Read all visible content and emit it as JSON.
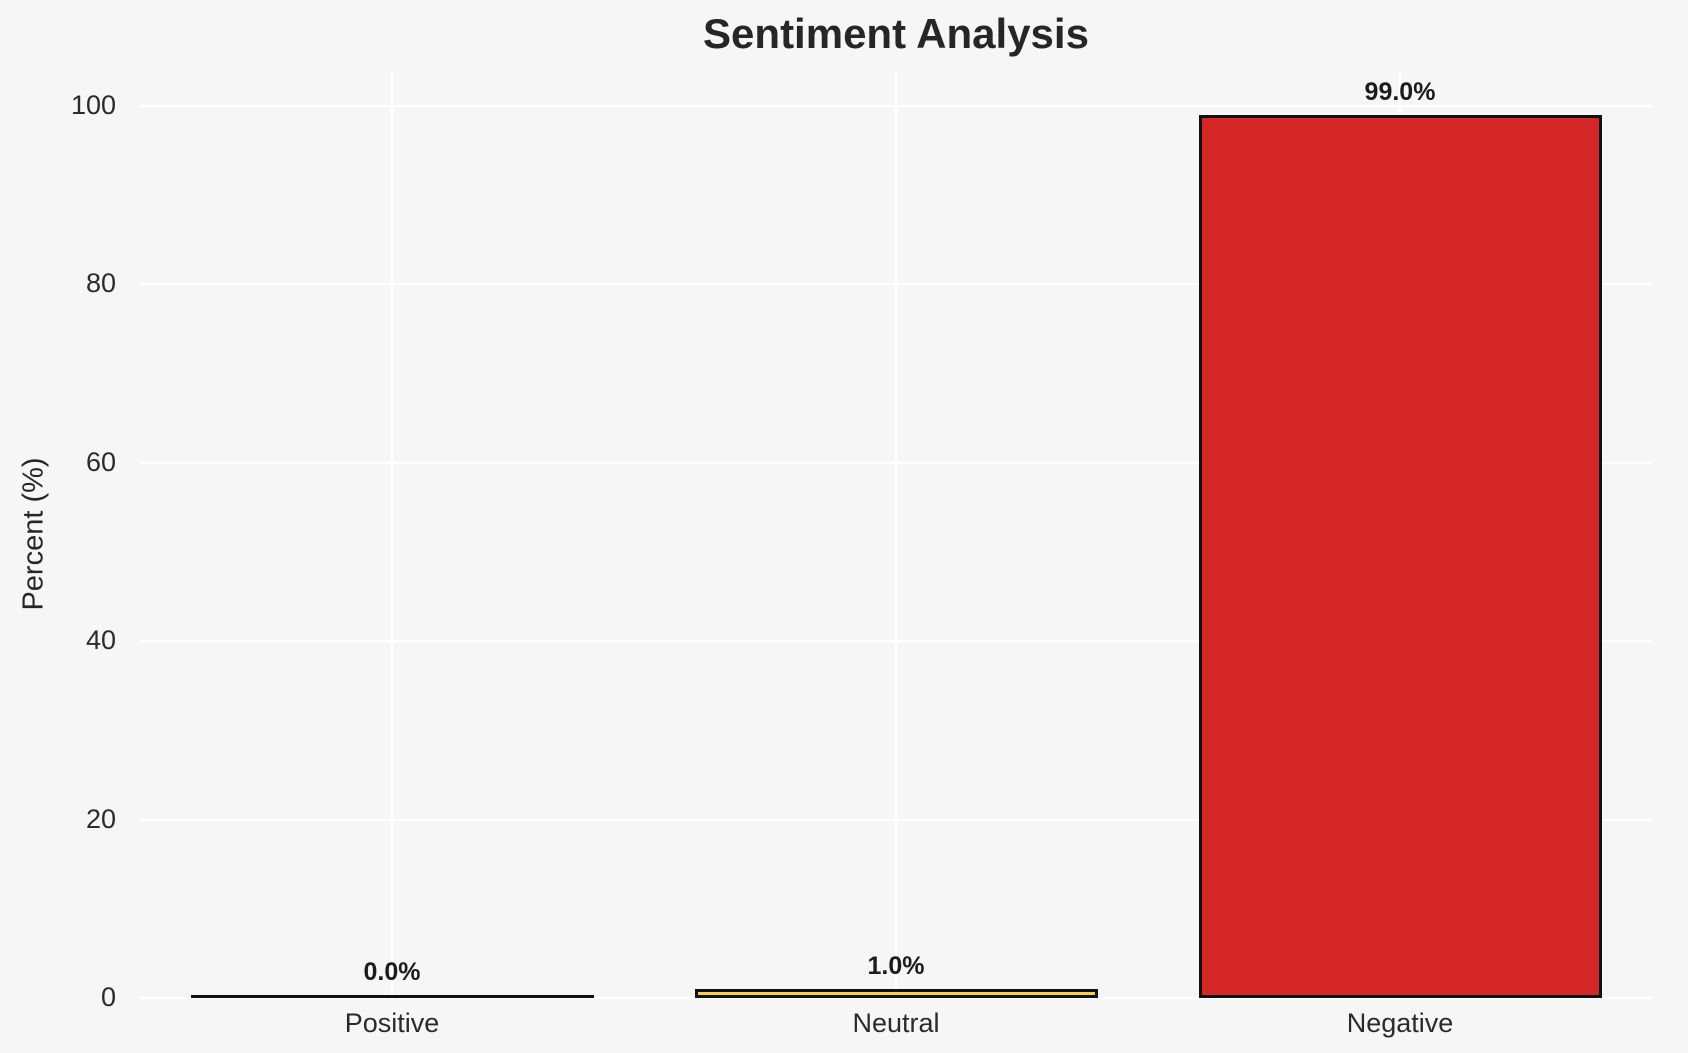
{
  "chart_data": {
    "type": "bar",
    "title": "Sentiment Analysis",
    "xlabel": "",
    "ylabel": "Percent (%)",
    "categories": [
      "Positive",
      "Neutral",
      "Negative"
    ],
    "values": [
      0.0,
      1.0,
      99.0
    ],
    "value_labels": [
      "0.0%",
      "1.0%",
      "99.0%"
    ],
    "ylim": [
      0,
      100
    ],
    "yticks": [
      0,
      20,
      40,
      60,
      80,
      100
    ],
    "grid": true,
    "gridline_color": "#ffffff",
    "legend_position": "none",
    "bar_fill_colors": [
      null,
      "#f5d240",
      "#d62728"
    ],
    "bar_edge_color": "#111111",
    "background_color": "#f6f6f7",
    "title_color": "#262626",
    "tick_label_color": "#2b2b2b",
    "value_label_color": "#1c1c1c"
  }
}
